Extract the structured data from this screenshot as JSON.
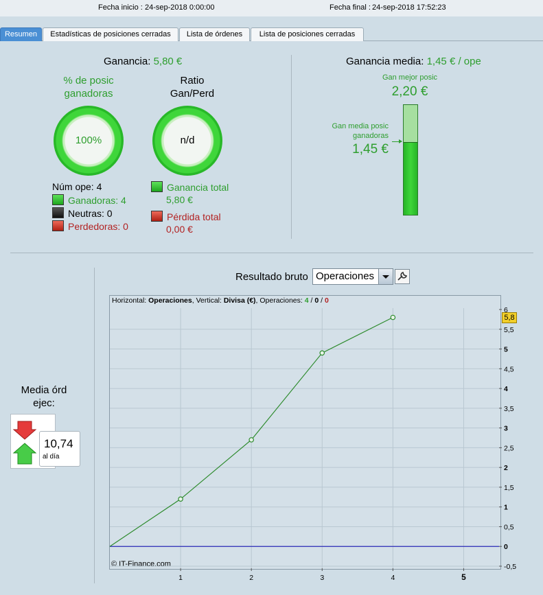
{
  "header": {
    "start_label": "Fecha inicio :",
    "start_value": "24-sep-2018 0:00:00",
    "end_label": "Fecha final :",
    "end_value": "24-sep-2018 17:52:23"
  },
  "tabs": [
    {
      "label": "Resumen",
      "active": true
    },
    {
      "label": "Estadísticas de posiciones cerradas"
    },
    {
      "label": "Lista de órdenes"
    },
    {
      "label": "Lista de posiciones cerradas"
    }
  ],
  "summary": {
    "gain_label": "Ganancia:",
    "gain_value": "5,80 €",
    "pct_label_1": "% de posic",
    "pct_label_2": "ganadoras",
    "pct_value": "100%",
    "ratio_label_1": "Ratio",
    "ratio_label_2": "Gan/Perd",
    "ratio_value": "n/d",
    "num_ope": "Núm ope: 4",
    "winners": "Ganadoras: 4",
    "neutral": "Neutras: 0",
    "losers": "Perdedoras: 0",
    "total_gain_label": "Ganancia total",
    "total_gain_value": "5,80 €",
    "total_loss_label": "Pérdida total",
    "total_loss_value": "0,00 €"
  },
  "avg": {
    "label": "Ganancia media:",
    "value": "1,45 € / ope",
    "best_label": "Gan mejor posic",
    "best_value": "2,20 €",
    "avg_win_label_1": "Gan media posic",
    "avg_win_label_2": "ganadoras",
    "avg_win_value": "1,45 €",
    "bar_fill_fraction": 0.659
  },
  "orders": {
    "label_1": "Media órd",
    "label_2": "ejec:",
    "value": "10,74",
    "unit": "al día"
  },
  "chart_header": {
    "title": "Resultado bruto",
    "select_value": "Operaciones"
  },
  "chart_info": {
    "h_label": "Horizontal: ",
    "h_value": "Operaciones",
    "v_label": ", Vertical: ",
    "v_value": "Divisa (€)",
    "ops_label": ", Operaciones: ",
    "ops_win": "4",
    "ops_sep1": " / ",
    "ops_neutral": "0",
    "ops_sep2": " / ",
    "ops_loss": "0",
    "copyright": "© IT-Finance.com",
    "last_value_badge": "5,8"
  },
  "chart_data": {
    "type": "line",
    "x": [
      0,
      1,
      2,
      3,
      4
    ],
    "y": [
      0,
      1.2,
      2.7,
      4.9,
      5.8
    ],
    "xlim": [
      0,
      5.5
    ],
    "ylim": [
      -0.5,
      6
    ],
    "xticks": [
      "1",
      "2",
      "3",
      "4",
      "5"
    ],
    "yticks": [
      "6",
      "5,5",
      "5",
      "4,5",
      "4",
      "3,5",
      "3",
      "2,5",
      "2",
      "1,5",
      "1",
      "0,5",
      "0",
      "-0,5"
    ],
    "series_color": "#2e8b2e",
    "zero_line_color": "#2b2bb8",
    "grid": true
  }
}
